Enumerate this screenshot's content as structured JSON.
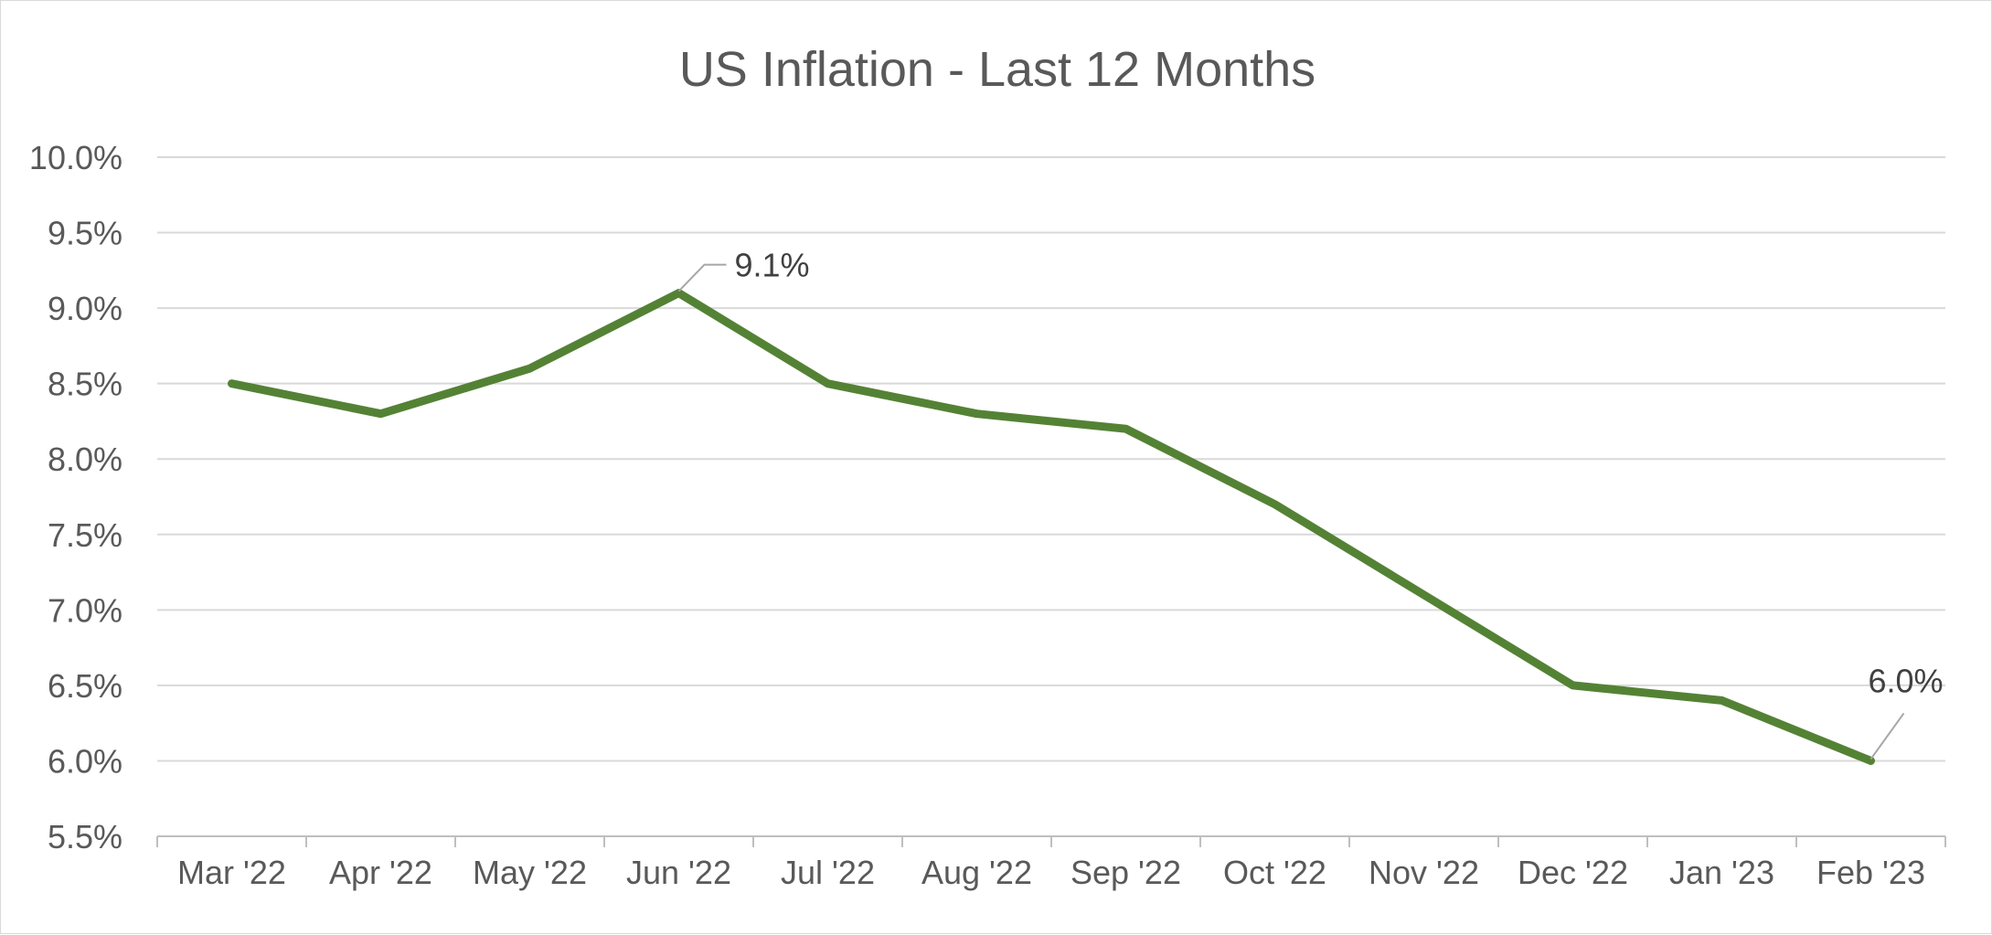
{
  "chart_data": {
    "type": "line",
    "title": "US Inflation - Last 12 Months",
    "xlabel": "",
    "ylabel": "",
    "categories": [
      "Mar '22",
      "Apr '22",
      "May '22",
      "Jun '22",
      "Jul '22",
      "Aug '22",
      "Sep '22",
      "Oct '22",
      "Nov '22",
      "Dec '22",
      "Jan '23",
      "Feb '23"
    ],
    "series": [
      {
        "name": "US Inflation",
        "color": "#548235",
        "values": [
          8.5,
          8.3,
          8.6,
          9.1,
          8.5,
          8.3,
          8.2,
          7.7,
          7.1,
          6.5,
          6.4,
          6.0
        ]
      }
    ],
    "ylim": [
      5.5,
      10.0
    ],
    "ytick_step": 0.5,
    "ytick_labels": [
      "5.5%",
      "6.0%",
      "6.5%",
      "7.0%",
      "7.5%",
      "8.0%",
      "8.5%",
      "9.0%",
      "9.5%",
      "10.0%"
    ],
    "grid": true,
    "gridline_color": "#d9d9d9",
    "legend": "none",
    "data_labels": [
      {
        "category_index": 3,
        "text": "9.1%",
        "placement": "upper-right"
      },
      {
        "category_index": 11,
        "text": "6.0%",
        "placement": "above"
      }
    ]
  }
}
